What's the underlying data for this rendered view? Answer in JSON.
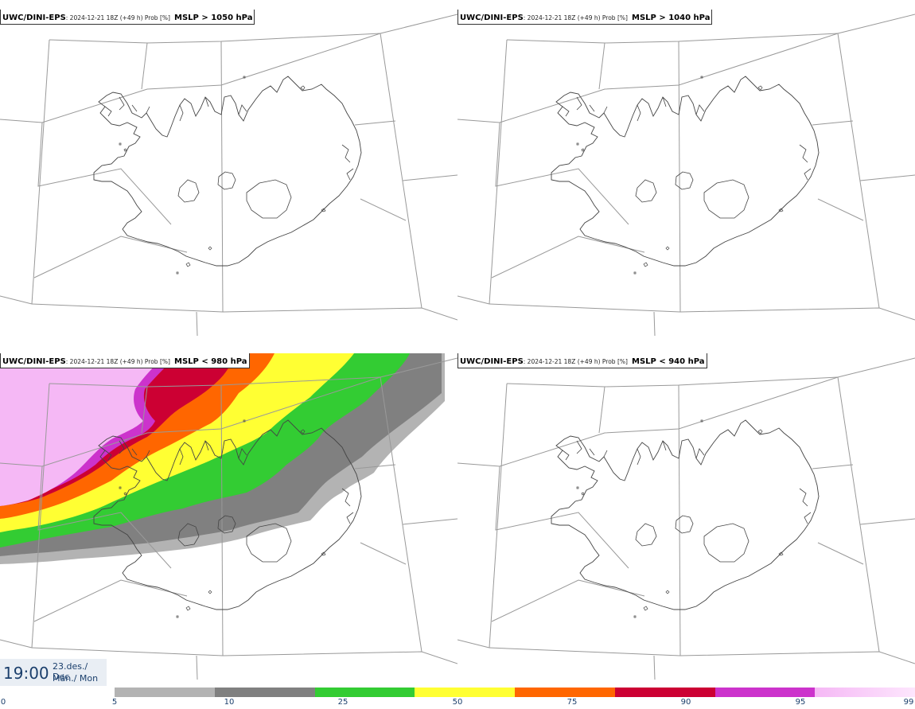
{
  "panels": [
    {
      "model": "UWC/DINI-EPS",
      "meta": ": 2024-12-21 18Z (+49 h) Prob [%]",
      "field": "MSLP > 1050 hPa"
    },
    {
      "model": "UWC/DINI-EPS",
      "meta": ": 2024-12-21 18Z (+49 h) Prob [%]",
      "field": "MSLP > 1040 hPa"
    },
    {
      "model": "UWC/DINI-EPS",
      "meta": ": 2024-12-21 18Z (+49 h) Prob [%]",
      "field": "MSLP < 980 hPa"
    },
    {
      "model": "UWC/DINI-EPS",
      "meta": ": 2024-12-21 18Z (+49 h) Prob [%]",
      "field": "MSLP < 940 hPa"
    }
  ],
  "valid_time": {
    "time": "19:00",
    "date_line1": "23.des./ Dec",
    "date_line2": "Mán./ Mon"
  },
  "colorbar": {
    "labels": [
      "0",
      "5",
      "10",
      "25",
      "50",
      "75",
      "90",
      "95",
      "99"
    ],
    "colors": [
      "#b3b3b3",
      "#808080",
      "#33cc33",
      "#ffff33",
      "#ff6600",
      "#cc0033",
      "#cc33cc",
      "#f5b8f5"
    ]
  },
  "colors": {
    "coast": "#444444",
    "grid": "#999999",
    "box_border": "#333333"
  }
}
